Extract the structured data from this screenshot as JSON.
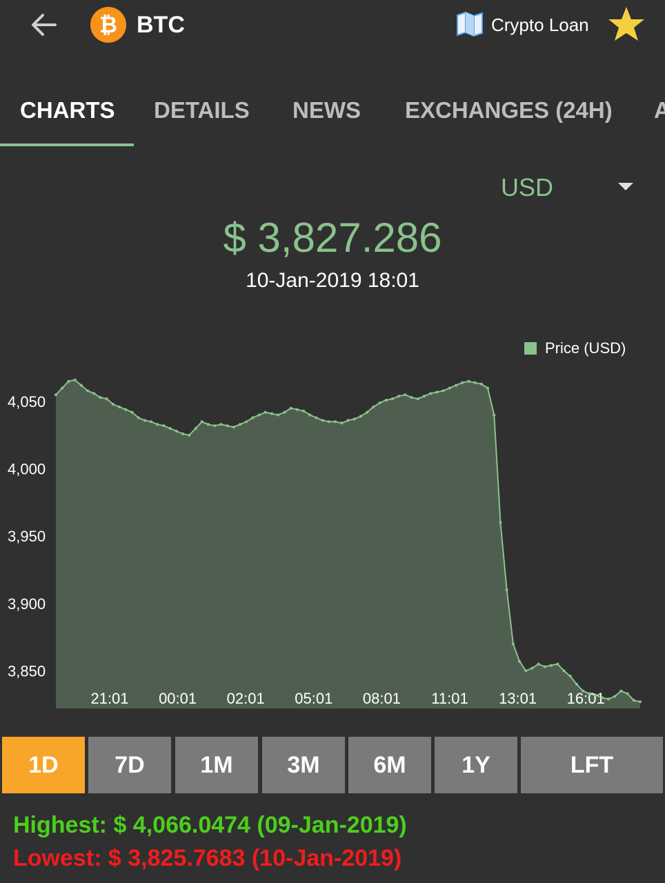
{
  "header": {
    "coin_symbol": "BTC",
    "coin_icon": "bitcoin-icon",
    "loan_label": "Crypto Loan",
    "colors": {
      "background": "#303030",
      "accent": "#8bc28c",
      "bitcoin": "#f7931a",
      "star": "#f4d03f"
    }
  },
  "tabs": [
    {
      "label": "CHARTS"
    },
    {
      "label": "DETAILS"
    },
    {
      "label": "NEWS"
    },
    {
      "label": "EXCHANGES (24H)"
    },
    {
      "label": "A"
    }
  ],
  "currency": {
    "selected": "USD"
  },
  "price": {
    "value": "$ 3,827.286",
    "datetime": "10-Jan-2019 18:01"
  },
  "chart_data": {
    "type": "area",
    "legend": "Price (USD)",
    "legend_position": "top-right",
    "color": "#8bc28c",
    "fill": "#4f5f4f",
    "y_ticks": [
      "4,050",
      "4,000",
      "3,950",
      "3,900",
      "3,850"
    ],
    "y_tick_values": [
      4050,
      4000,
      3950,
      3900,
      3850
    ],
    "x_ticks": [
      "21:01",
      "00:01",
      "02:01",
      "05:01",
      "08:01",
      "11:01",
      "13:01",
      "16:01"
    ],
    "ylim": [
      3822,
      4070
    ],
    "grid": false,
    "series": [
      {
        "values": [
          4055,
          4060,
          4065,
          4066,
          4062,
          4058,
          4056,
          4053,
          4052,
          4048,
          4046,
          4044,
          4042,
          4038,
          4036,
          4035,
          4033,
          4032,
          4030,
          4028,
          4026,
          4025,
          4030,
          4035,
          4033,
          4032,
          4033,
          4032,
          4031,
          4033,
          4035,
          4038,
          4040,
          4042,
          4041,
          4040,
          4042,
          4045,
          4044,
          4043,
          4040,
          4038,
          4036,
          4035,
          4035,
          4034,
          4036,
          4037,
          4039,
          4042,
          4046,
          4049,
          4051,
          4052,
          4054,
          4055,
          4053,
          4052,
          4054,
          4056,
          4057,
          4058,
          4060,
          4062,
          4064,
          4065,
          4064,
          4063,
          4060,
          4040,
          3960,
          3910,
          3870,
          3857,
          3850,
          3852,
          3855,
          3853,
          3854,
          3855,
          3850,
          3846,
          3840,
          3835,
          3833,
          3832,
          3830,
          3829,
          3831,
          3835,
          3833,
          3828,
          3827
        ]
      }
    ]
  },
  "ranges": [
    {
      "label": "1D"
    },
    {
      "label": "7D"
    },
    {
      "label": "1M"
    },
    {
      "label": "3M"
    },
    {
      "label": "6M"
    },
    {
      "label": "1Y"
    },
    {
      "label": "LFT"
    }
  ],
  "stats": {
    "highest": "Highest: $ 4,066.0474 (09-Jan-2019)",
    "lowest": "Lowest: $ 3,825.7683 (10-Jan-2019)"
  }
}
